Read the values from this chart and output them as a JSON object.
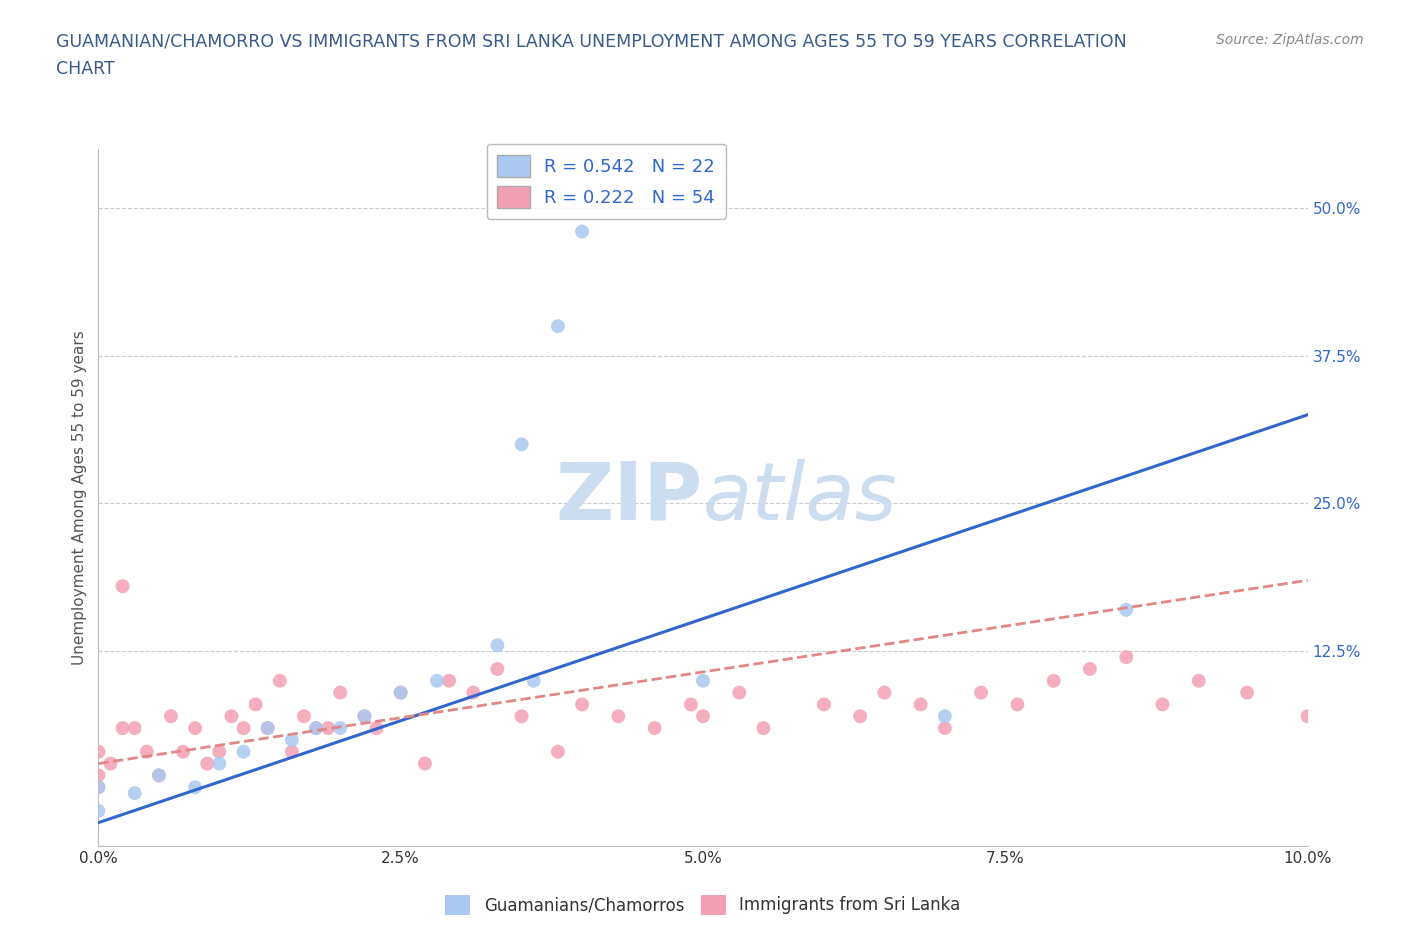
{
  "title_line1": "GUAMANIAN/CHAMORRO VS IMMIGRANTS FROM SRI LANKA UNEMPLOYMENT AMONG AGES 55 TO 59 YEARS CORRELATION",
  "title_line2": "CHART",
  "source_text": "Source: ZipAtlas.com",
  "ylabel": "Unemployment Among Ages 55 to 59 years",
  "xlim": [
    0.0,
    0.1
  ],
  "ylim": [
    -0.04,
    0.55
  ],
  "xtick_vals": [
    0.0,
    0.025,
    0.05,
    0.075,
    0.1
  ],
  "xtick_labels": [
    "0.0%",
    "2.5%",
    "5.0%",
    "7.5%",
    "10.0%"
  ],
  "ytick_vals": [
    0.125,
    0.25,
    0.375,
    0.5
  ],
  "ytick_labels": [
    "12.5%",
    "25.0%",
    "37.5%",
    "50.0%"
  ],
  "legend1_label": "R = 0.542   N = 22",
  "legend2_label": "R = 0.222   N = 54",
  "legend_group1": "Guamanians/Chamorros",
  "legend_group2": "Immigrants from Sri Lanka",
  "color_blue": "#aac8f0",
  "color_pink": "#f4a0b4",
  "trendline_blue": "#3366cc",
  "trendline_pink": "#e08888",
  "title_color": "#3a5a8a",
  "source_color": "#888888",
  "ylabel_color": "#555555",
  "ytick_color": "#3366cc",
  "xtick_color": "#333333",
  "watermark_color": "#ccddf0",
  "guam_x": [
    0.0,
    0.0,
    0.003,
    0.005,
    0.008,
    0.01,
    0.012,
    0.014,
    0.016,
    0.018,
    0.02,
    0.022,
    0.025,
    0.028,
    0.033,
    0.036,
    0.038,
    0.04,
    0.035,
    0.05,
    0.07,
    0.085
  ],
  "guam_y": [
    -0.01,
    0.01,
    0.005,
    0.02,
    0.01,
    0.03,
    0.04,
    0.06,
    0.05,
    0.06,
    0.06,
    0.07,
    0.09,
    0.1,
    0.13,
    0.1,
    0.4,
    0.48,
    0.3,
    0.1,
    0.07,
    0.16
  ],
  "sri_x": [
    0.0,
    0.0,
    0.0,
    0.001,
    0.002,
    0.002,
    0.003,
    0.004,
    0.005,
    0.006,
    0.007,
    0.008,
    0.009,
    0.01,
    0.011,
    0.012,
    0.013,
    0.014,
    0.015,
    0.016,
    0.017,
    0.018,
    0.019,
    0.02,
    0.022,
    0.023,
    0.025,
    0.027,
    0.029,
    0.031,
    0.033,
    0.035,
    0.038,
    0.04,
    0.043,
    0.046,
    0.049,
    0.05,
    0.053,
    0.055,
    0.06,
    0.063,
    0.065,
    0.068,
    0.07,
    0.073,
    0.076,
    0.079,
    0.082,
    0.085,
    0.088,
    0.091,
    0.095,
    0.1
  ],
  "sri_y": [
    0.01,
    0.02,
    0.04,
    0.03,
    0.06,
    0.18,
    0.06,
    0.04,
    0.02,
    0.07,
    0.04,
    0.06,
    0.03,
    0.04,
    0.07,
    0.06,
    0.08,
    0.06,
    0.1,
    0.04,
    0.07,
    0.06,
    0.06,
    0.09,
    0.07,
    0.06,
    0.09,
    0.03,
    0.1,
    0.09,
    0.11,
    0.07,
    0.04,
    0.08,
    0.07,
    0.06,
    0.08,
    0.07,
    0.09,
    0.06,
    0.08,
    0.07,
    0.09,
    0.08,
    0.06,
    0.09,
    0.08,
    0.1,
    0.11,
    0.12,
    0.08,
    0.1,
    0.09,
    0.07
  ],
  "blue_trend_x0": 0.0,
  "blue_trend_y0": -0.02,
  "blue_trend_x1": 0.1,
  "blue_trend_y1": 0.325,
  "pink_trend_x0": 0.0,
  "pink_trend_y0": 0.03,
  "pink_trend_x1": 0.1,
  "pink_trend_y1": 0.185
}
